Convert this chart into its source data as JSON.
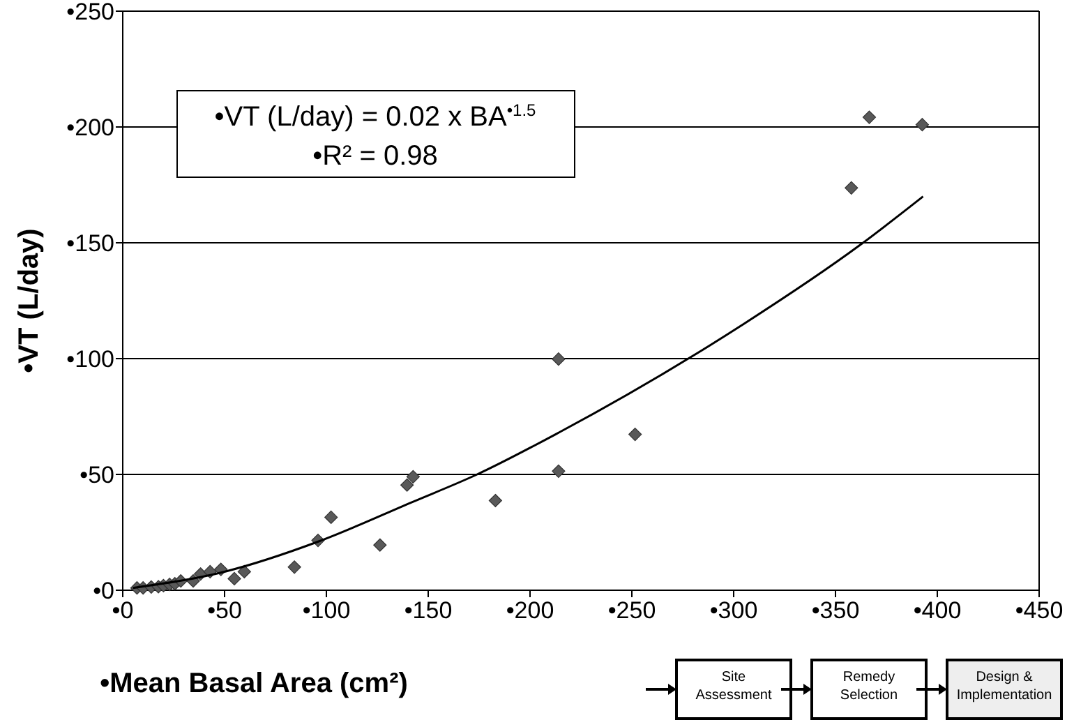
{
  "chart_data": {
    "type": "scatter",
    "xlabel": "•Mean Basal Area (cm²)",
    "ylabel": "•VT (L/day)",
    "xlim": [
      0,
      450
    ],
    "ylim": [
      0,
      250
    ],
    "xticks": [
      {
        "value": 0,
        "label": "•0"
      },
      {
        "value": 50,
        "label": "•50"
      },
      {
        "value": 100,
        "label": "•100"
      },
      {
        "value": 150,
        "label": "•150"
      },
      {
        "value": 200,
        "label": "•200"
      },
      {
        "value": 250,
        "label": "•250"
      },
      {
        "value": 300,
        "label": "•300"
      },
      {
        "value": 350,
        "label": "•350"
      },
      {
        "value": 400,
        "label": "•400"
      },
      {
        "value": 450,
        "label": "•450"
      }
    ],
    "yticks": [
      {
        "value": 0,
        "label": "•0"
      },
      {
        "value": 50,
        "label": "•50"
      },
      {
        "value": 100,
        "label": "•100"
      },
      {
        "value": 150,
        "label": "•150"
      },
      {
        "value": 200,
        "label": "•200"
      },
      {
        "value": 250,
        "label": "•250"
      }
    ],
    "grid": "y",
    "marker": "diamond",
    "series": [
      {
        "color": "#595959",
        "x": [
          7,
          10,
          14,
          17.5,
          20,
          23,
          25.6,
          28.5,
          34.6,
          38.2,
          42.9,
          48.2,
          54.8,
          59.7,
          84.3,
          95.9,
          102.3,
          126.3,
          139.6,
          142.6,
          183,
          214,
          214,
          251.6,
          357.8,
          366.6,
          392.6
        ],
        "values": [
          1,
          1,
          1.4,
          1.5,
          2,
          2.5,
          2.8,
          4,
          4,
          7,
          8,
          9,
          5,
          8,
          10,
          21.5,
          31.5,
          19.5,
          45.4,
          49,
          38.7,
          99.8,
          51.4,
          67.3,
          173.7,
          204.2,
          201
        ]
      },
      {
        "type": "line",
        "color": "#000000",
        "marker": "none",
        "x": [
          5,
          50,
          96,
          142,
          174,
          214,
          305,
          362,
          393
        ],
        "values": [
          1,
          8,
          21,
          38,
          50,
          68,
          115,
          149,
          170
        ]
      }
    ],
    "annotations": [
      "•VT (L/day) = 0.02 x BA$^{•1.5}$",
      "•R² = 0.98",
      "Site Assessment",
      "Remedy Selection",
      "Design & Implementation"
    ]
  }
}
